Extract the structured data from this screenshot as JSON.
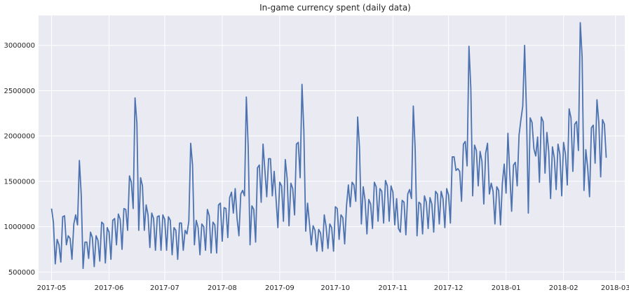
{
  "chart_data": {
    "type": "line",
    "title": "In-game currency spent (daily data)",
    "xlabel": "",
    "ylabel": "",
    "x_ticks": [
      "2017-05",
      "2017-06",
      "2017-07",
      "2017-08",
      "2017-09",
      "2017-10",
      "2017-11",
      "2017-12",
      "2018-01",
      "2018-02",
      "2018-03"
    ],
    "y_ticks": [
      "500000",
      "1000000",
      "1500000",
      "2000000",
      "2500000",
      "3000000"
    ],
    "xlim": [
      "2017-04-24",
      "2018-03-06"
    ],
    "ylim": [
      410000,
      3330000
    ],
    "grid": true,
    "background": "#e9eaf2",
    "line_color": "#4c72b0",
    "series": [
      {
        "start_date": "2017-05-01",
        "values": [
          1200000,
          1050000,
          590000,
          860000,
          800000,
          610000,
          1110000,
          1120000,
          800000,
          900000,
          870000,
          640000,
          1030000,
          1130000,
          1020000,
          1730000,
          1350000,
          540000,
          830000,
          830000,
          650000,
          940000,
          880000,
          560000,
          900000,
          850000,
          620000,
          1050000,
          1030000,
          600000,
          990000,
          940000,
          640000,
          1070000,
          1090000,
          800000,
          1140000,
          1080000,
          750000,
          1200000,
          1190000,
          960000,
          1560000,
          1490000,
          1200000,
          2420000,
          2140000,
          960000,
          1540000,
          1450000,
          960000,
          1240000,
          1130000,
          770000,
          1150000,
          1090000,
          740000,
          1110000,
          1120000,
          740000,
          1130000,
          1080000,
          740000,
          1110000,
          1070000,
          690000,
          990000,
          960000,
          640000,
          1040000,
          1040000,
          740000,
          960000,
          920000,
          1060000,
          1920000,
          1680000,
          800000,
          1070000,
          990000,
          690000,
          1030000,
          1000000,
          740000,
          1190000,
          1120000,
          710000,
          1050000,
          1020000,
          710000,
          1240000,
          1260000,
          840000,
          1210000,
          1200000,
          880000,
          1320000,
          1380000,
          1150000,
          1420000,
          1090000,
          900000,
          1360000,
          1400000,
          1340000,
          2430000,
          1880000,
          800000,
          1230000,
          1190000,
          830000,
          1650000,
          1680000,
          1270000,
          1910000,
          1620000,
          1330000,
          1750000,
          1750000,
          1340000,
          1610000,
          1310000,
          990000,
          1490000,
          1450000,
          1060000,
          1740000,
          1530000,
          1010000,
          1480000,
          1420000,
          1130000,
          1910000,
          1930000,
          1540000,
          2570000,
          2060000,
          950000,
          1260000,
          1040000,
          800000,
          1010000,
          960000,
          730000,
          970000,
          930000,
          730000,
          1130000,
          1000000,
          760000,
          1030000,
          990000,
          730000,
          1220000,
          1200000,
          860000,
          1130000,
          1100000,
          810000,
          1230000,
          1460000,
          1220000,
          1490000,
          1460000,
          1280000,
          2210000,
          1870000,
          1030000,
          1440000,
          1290000,
          920000,
          1300000,
          1250000,
          980000,
          1490000,
          1440000,
          1060000,
          1420000,
          1390000,
          1040000,
          1510000,
          1450000,
          1060000,
          1450000,
          1380000,
          1020000,
          1310000,
          980000,
          940000,
          1290000,
          1270000,
          910000,
          1360000,
          1410000,
          1310000,
          2330000,
          1860000,
          900000,
          1270000,
          1250000,
          920000,
          1340000,
          1270000,
          980000,
          1320000,
          1250000,
          940000,
          1390000,
          1360000,
          1030000,
          1390000,
          1310000,
          990000,
          1420000,
          1350000,
          1040000,
          1770000,
          1770000,
          1620000,
          1640000,
          1610000,
          1280000,
          1910000,
          1940000,
          1670000,
          2990000,
          2530000,
          1340000,
          1900000,
          1840000,
          1450000,
          1830000,
          1720000,
          1250000,
          1810000,
          1920000,
          1360000,
          1480000,
          1390000,
          1030000,
          1440000,
          1400000,
          1020000,
          1480000,
          1690000,
          1370000,
          2030000,
          1590000,
          1170000,
          1680000,
          1710000,
          1450000,
          2010000,
          2180000,
          2330000,
          3000000,
          2270000,
          1150000,
          2200000,
          2150000,
          1860000,
          1780000,
          1990000,
          1490000,
          2210000,
          2160000,
          1590000,
          2040000,
          1830000,
          1310000,
          1880000,
          1760000,
          1410000,
          1910000,
          1800000,
          1340000,
          1930000,
          1800000,
          1460000,
          2300000,
          2200000,
          1610000,
          2130000,
          2160000,
          1840000,
          3250000,
          2870000,
          1400000,
          1850000,
          1650000,
          1330000,
          2090000,
          2120000,
          1700000,
          2400000,
          2150000,
          1550000,
          2180000,
          2130000,
          1760000
        ]
      }
    ]
  }
}
